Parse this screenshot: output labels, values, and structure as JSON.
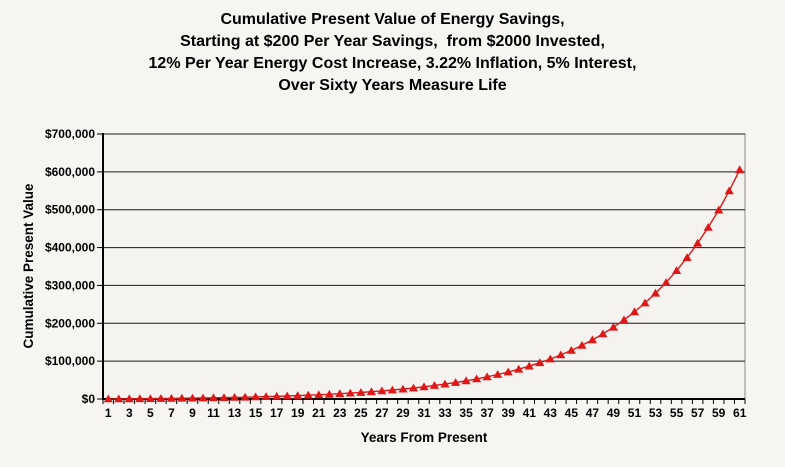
{
  "chart_data": {
    "type": "line",
    "title_lines": [
      "Cumulative Present Value of Energy Savings,",
      "Starting at $200 Per Year Savings,  from $2000 Invested,",
      "12% Per Year Energy Cost Increase, 3.22% Inflation, 5% Interest,",
      "Over Sixty Years Measure Life"
    ],
    "xlabel": "Years From Present",
    "ylabel": "Cumulative Present Value",
    "x": [
      1,
      2,
      3,
      4,
      5,
      6,
      7,
      8,
      9,
      10,
      11,
      12,
      13,
      14,
      15,
      16,
      17,
      18,
      19,
      20,
      21,
      22,
      23,
      24,
      25,
      26,
      27,
      28,
      29,
      30,
      31,
      32,
      33,
      34,
      35,
      36,
      37,
      38,
      39,
      40,
      41,
      42,
      43,
      44,
      45,
      46,
      47,
      48,
      49,
      50,
      51,
      52,
      53,
      54,
      55,
      56,
      57,
      58,
      59,
      60,
      61
    ],
    "values": [
      173,
      364,
      574,
      805,
      1059,
      1340,
      1648,
      1988,
      2362,
      2773,
      3227,
      3726,
      4275,
      4880,
      5547,
      6280,
      7088,
      7977,
      8955,
      10033,
      11220,
      12526,
      13965,
      15548,
      17292,
      19211,
      21325,
      23652,
      26214,
      29035,
      32140,
      35560,
      39325,
      43470,
      48033,
      53058,
      58590,
      64681,
      71387,
      78770,
      86899,
      95849,
      105703,
      116552,
      128497,
      141648,
      156128,
      172070,
      189622,
      208947,
      230224,
      253650,
      279442,
      307838,
      339103,
      373526,
      411425,
      453152,
      499094,
      549675,
      605335
    ],
    "ylim": [
      0,
      700000
    ],
    "ytick_step": 100000,
    "ytick_labels": [
      "$0",
      "$100,000",
      "$200,000",
      "$300,000",
      "$400,000",
      "$500,000",
      "$600,000",
      "$700,000"
    ],
    "xticks_shown": [
      1,
      3,
      5,
      7,
      9,
      11,
      13,
      15,
      17,
      19,
      21,
      23,
      25,
      27,
      29,
      31,
      33,
      35,
      37,
      39,
      41,
      43,
      45,
      47,
      49,
      51,
      53,
      55,
      57,
      59,
      61
    ],
    "grid": "horizontal-major",
    "legend": "none",
    "marker": "triangle-up",
    "colors": {
      "series": "#dc1818",
      "background": "#f7f5f2",
      "plot_background": "#f5f3f0",
      "gridline": "#1a1a1a",
      "plot_border": "#8a8a8a",
      "axis": "#000000",
      "text": "#000000"
    }
  }
}
